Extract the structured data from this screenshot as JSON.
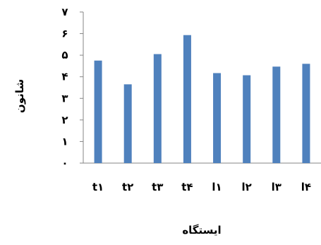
{
  "chart_data": {
    "type": "bar",
    "categories": [
      "t۱",
      "t۲",
      "t۳",
      "t۴",
      "l۱",
      "l۲",
      "l۳",
      "l۴"
    ],
    "values": [
      4.75,
      3.65,
      5.05,
      5.93,
      4.17,
      4.07,
      4.47,
      4.6
    ],
    "ylim": [
      0,
      7
    ],
    "yticks": [
      0,
      1,
      2,
      3,
      4,
      5,
      6,
      7
    ],
    "ytick_labels": [
      "۰",
      "۱",
      "۲",
      "۳",
      "۴",
      "۵",
      "۶",
      "۷"
    ],
    "xlabel": "ایستگاه",
    "ylabel": "شانون",
    "grid": false,
    "bar_color": "#4F81BD",
    "axis_color": "#868686"
  }
}
